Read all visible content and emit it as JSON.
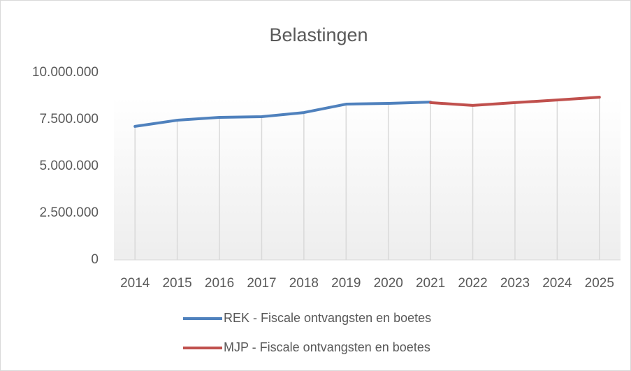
{
  "chart_data": {
    "type": "line",
    "title": "Belastingen",
    "categories": [
      "2014",
      "2015",
      "2016",
      "2017",
      "2018",
      "2019",
      "2020",
      "2021",
      "2022",
      "2023",
      "2024",
      "2025"
    ],
    "series": [
      {
        "name": "REK - Fiscale ontvangsten en boetes",
        "color": "#4f81bd",
        "values": [
          7130000,
          7460000,
          7610000,
          7650000,
          7870000,
          8320000,
          8360000,
          8430000,
          null,
          null,
          null,
          null
        ]
      },
      {
        "name": "MJP - Fiscale ontvangsten en boetes",
        "color": "#c0504d",
        "values": [
          null,
          null,
          null,
          null,
          null,
          null,
          null,
          8400000,
          8250000,
          8400000,
          8540000,
          8690000
        ]
      }
    ],
    "ylim": [
      0,
      10000000
    ],
    "yticks": [
      0,
      {
        "value": 2500000,
        "label": "2.500.000"
      },
      {
        "value": 5000000,
        "label": "5.000.000"
      },
      {
        "value": 7500000,
        "label": "7.500.000"
      },
      {
        "value": 10000000,
        "label": "10.000.000"
      }
    ],
    "legend": "bottom"
  }
}
